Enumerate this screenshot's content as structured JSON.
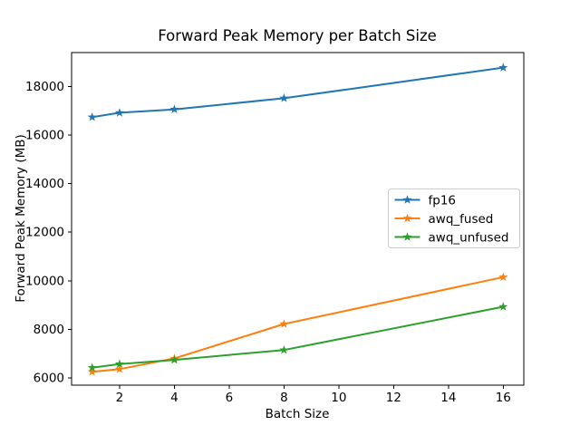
{
  "chart_data": {
    "type": "line",
    "title": "Forward Peak Memory per Batch Size",
    "xlabel": "Batch Size",
    "ylabel": "Forward Peak Memory (MB)",
    "x": [
      1,
      2,
      4,
      8,
      16
    ],
    "series": [
      {
        "name": "fp16",
        "color": "#1f77b4",
        "values": [
          16740,
          16920,
          17060,
          17520,
          18780
        ]
      },
      {
        "name": "awq_fused",
        "color": "#ff7f0e",
        "values": [
          6250,
          6360,
          6800,
          8220,
          10150
        ]
      },
      {
        "name": "awq_unfused",
        "color": "#2ca02c",
        "values": [
          6420,
          6570,
          6740,
          7150,
          8930
        ]
      }
    ],
    "marker": "star",
    "line_width": 2,
    "xlim": [
      0.25,
      16.75
    ],
    "ylim": [
      5700,
      19400
    ],
    "xticks": [
      2,
      4,
      6,
      8,
      10,
      12,
      14,
      16
    ],
    "yticks": [
      6000,
      8000,
      10000,
      12000,
      14000,
      16000,
      18000
    ],
    "grid": false,
    "legend_position": "center-right",
    "axis_color": "#000000",
    "legend_border_color": "#cccccc",
    "background": "#ffffff"
  }
}
